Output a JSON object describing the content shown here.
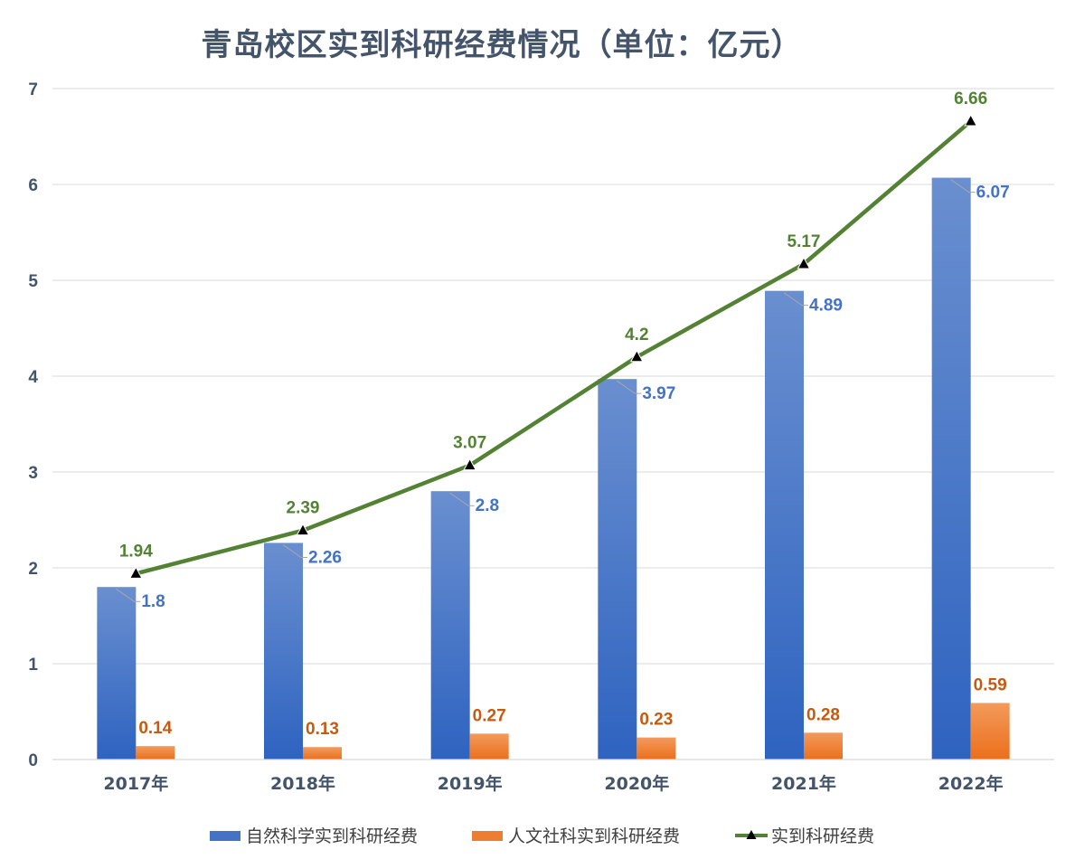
{
  "chart_data": {
    "type": "bar",
    "title": "青岛校区实到科研经费情况（单位：亿元）",
    "categories": [
      "2017年",
      "2018年",
      "2019年",
      "2020年",
      "2021年",
      "2022年"
    ],
    "ylim": [
      0,
      7
    ],
    "yticks": [
      0,
      1,
      2,
      3,
      4,
      5,
      6,
      7
    ],
    "grid": true,
    "legend_position": "bottom",
    "series": [
      {
        "name": "自然科学实到科研经费",
        "type": "bar",
        "color": "#4472c4",
        "values": [
          1.8,
          2.26,
          2.8,
          3.97,
          4.89,
          6.07
        ]
      },
      {
        "name": "人文社科实到科研经费",
        "type": "bar",
        "color": "#ed7d31",
        "values": [
          0.14,
          0.13,
          0.27,
          0.23,
          0.28,
          0.59
        ]
      },
      {
        "name": "实到科研经费",
        "type": "line",
        "color": "#548235",
        "values": [
          1.94,
          2.39,
          3.07,
          4.2,
          5.17,
          6.66
        ]
      }
    ]
  }
}
